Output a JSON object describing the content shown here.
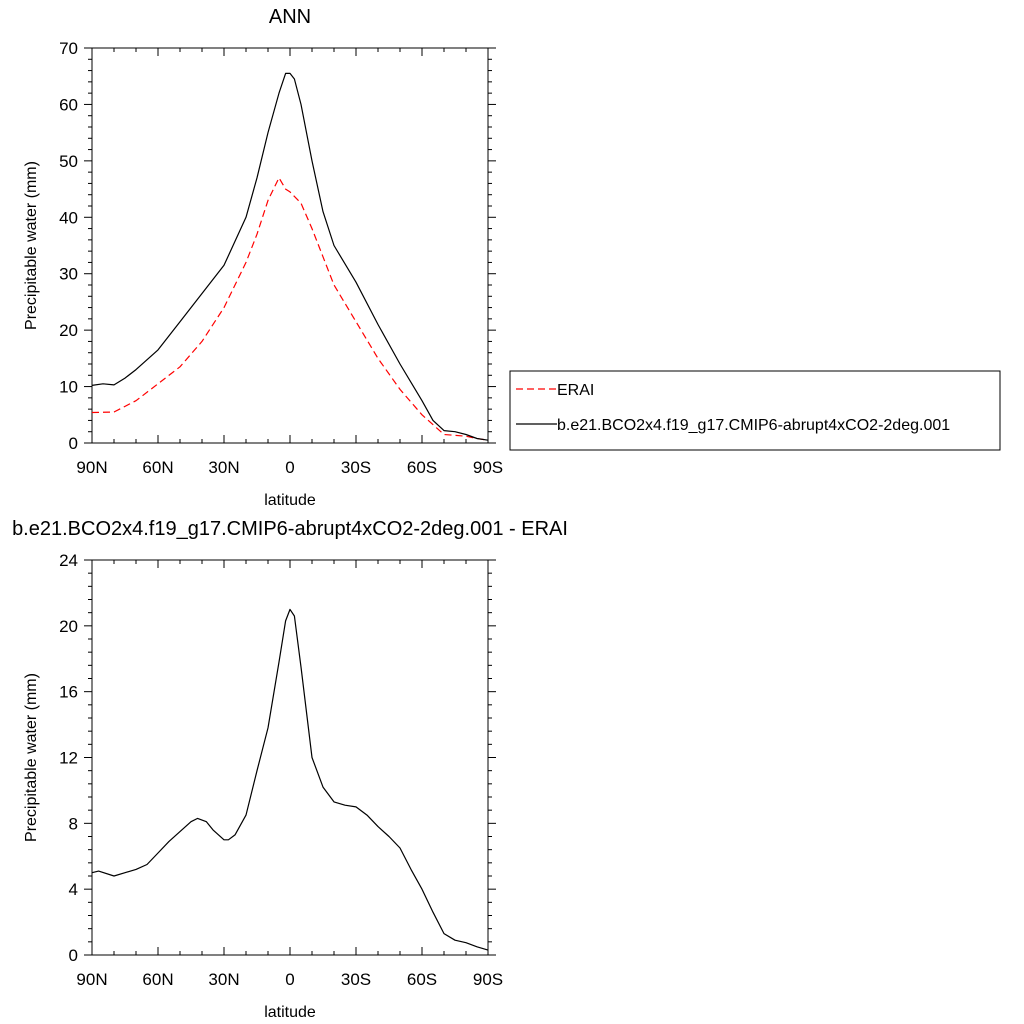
{
  "chart_data": [
    {
      "type": "line",
      "title": "ANN",
      "xlabel": "latitude",
      "ylabel": "Precipitable water (mm)",
      "xlim": [
        90,
        -90
      ],
      "ylim": [
        0,
        70
      ],
      "xticks": [
        {
          "value": 90,
          "label": "90N"
        },
        {
          "value": 60,
          "label": "60N"
        },
        {
          "value": 30,
          "label": "30N"
        },
        {
          "value": 0,
          "label": "0"
        },
        {
          "value": -30,
          "label": "30S"
        },
        {
          "value": -60,
          "label": "60S"
        },
        {
          "value": -90,
          "label": "90S"
        }
      ],
      "yticks": [
        0,
        10,
        20,
        30,
        40,
        50,
        60,
        70
      ],
      "legend_position": "right",
      "series": [
        {
          "name": "ERAI",
          "color": "#ff0000",
          "style": "dashed",
          "x": [
            90,
            80,
            70,
            60,
            50,
            40,
            30,
            20,
            15,
            10,
            5,
            2,
            0,
            -5,
            -10,
            -15,
            -20,
            -30,
            -40,
            -50,
            -60,
            -70,
            -80,
            -85,
            -90
          ],
          "y": [
            5.4,
            5.5,
            7.5,
            10.5,
            13.5,
            18,
            24,
            32,
            37,
            43,
            47,
            45,
            44.5,
            42.5,
            38,
            33,
            28,
            21.5,
            15,
            9.5,
            5,
            1.5,
            1.2,
            0.8,
            0.5
          ]
        },
        {
          "name": "b.e21.BCO2x4.f19_g17.CMIP6-abrupt4xCO2-2deg.001",
          "color": "#000000",
          "style": "solid",
          "x": [
            90,
            85,
            80,
            75,
            70,
            60,
            50,
            40,
            30,
            20,
            15,
            10,
            5,
            2,
            0,
            -2,
            -5,
            -10,
            -15,
            -20,
            -30,
            -40,
            -50,
            -60,
            -65,
            -70,
            -75,
            -80,
            -85,
            -90
          ],
          "y": [
            10.2,
            10.5,
            10.3,
            11.5,
            13,
            16.5,
            21.5,
            26.5,
            31.5,
            40,
            47,
            55,
            62,
            65.5,
            65.5,
            64.5,
            60,
            50,
            41,
            35,
            28.5,
            21,
            14,
            7.5,
            4,
            2.2,
            2,
            1.5,
            0.8,
            0.5
          ]
        }
      ]
    },
    {
      "type": "line",
      "title": "b.e21.BCO2x4.f19_g17.CMIP6-abrupt4xCO2-2deg.001 - ERAI",
      "xlabel": "latitude",
      "ylabel": "Precipitable water (mm)",
      "xlim": [
        90,
        -90
      ],
      "ylim": [
        0,
        24
      ],
      "xticks": [
        {
          "value": 90,
          "label": "90N"
        },
        {
          "value": 60,
          "label": "60N"
        },
        {
          "value": 30,
          "label": "30N"
        },
        {
          "value": 0,
          "label": "0"
        },
        {
          "value": -30,
          "label": "30S"
        },
        {
          "value": -60,
          "label": "60S"
        },
        {
          "value": -90,
          "label": "90S"
        }
      ],
      "yticks": [
        0,
        4,
        8,
        12,
        16,
        20,
        24
      ],
      "series": [
        {
          "color": "#000000",
          "style": "solid",
          "x": [
            90,
            87,
            80,
            75,
            70,
            65,
            60,
            55,
            50,
            45,
            42,
            38,
            35,
            30,
            28,
            25,
            20,
            15,
            10,
            5,
            2,
            0,
            -2,
            -5,
            -10,
            -15,
            -20,
            -25,
            -30,
            -35,
            -40,
            -45,
            -50,
            -55,
            -60,
            -65,
            -70,
            -75,
            -80,
            -85,
            -90
          ],
          "y": [
            5,
            5.1,
            4.8,
            5,
            5.2,
            5.5,
            6.2,
            6.9,
            7.5,
            8.1,
            8.3,
            8.1,
            7.6,
            7.0,
            7.0,
            7.3,
            8.5,
            11.2,
            13.8,
            17.8,
            20.3,
            21.0,
            20.6,
            17.5,
            12,
            10.2,
            9.3,
            9.1,
            9.0,
            8.5,
            7.8,
            7.2,
            6.5,
            5.2,
            4.0,
            2.6,
            1.3,
            0.9,
            0.75,
            0.5,
            0.3
          ]
        }
      ]
    }
  ]
}
